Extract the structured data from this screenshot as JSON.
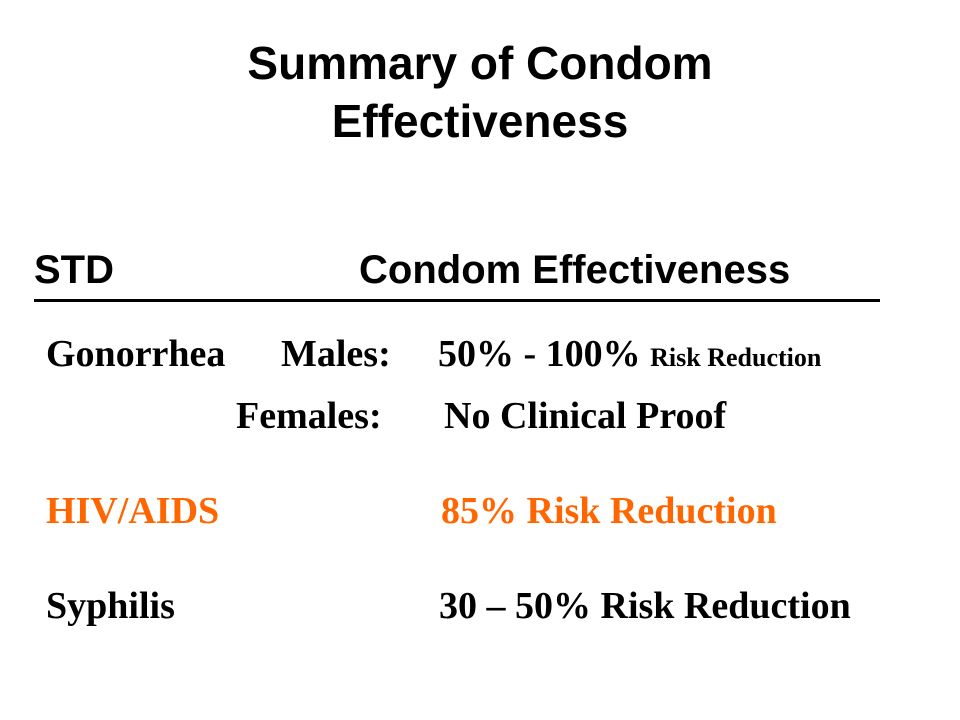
{
  "slide": {
    "title_line1": "Summary of Condom",
    "title_line2": "Effectiveness",
    "header": {
      "std": "STD",
      "effectiveness": "Condom Effectiveness"
    },
    "gonorrhea": {
      "name": "Gonorrhea",
      "males_label": "Males:",
      "males_value": "50% - 100%",
      "males_note": "Risk Reduction",
      "females_label": "Females:",
      "females_value": "No Clinical Proof"
    },
    "hiv": {
      "name": "HIV/AIDS",
      "value": "85% Risk Reduction",
      "color": "#ff6600"
    },
    "syphilis": {
      "name": "Syphilis",
      "value": "30 – 50% Risk Reduction"
    }
  }
}
